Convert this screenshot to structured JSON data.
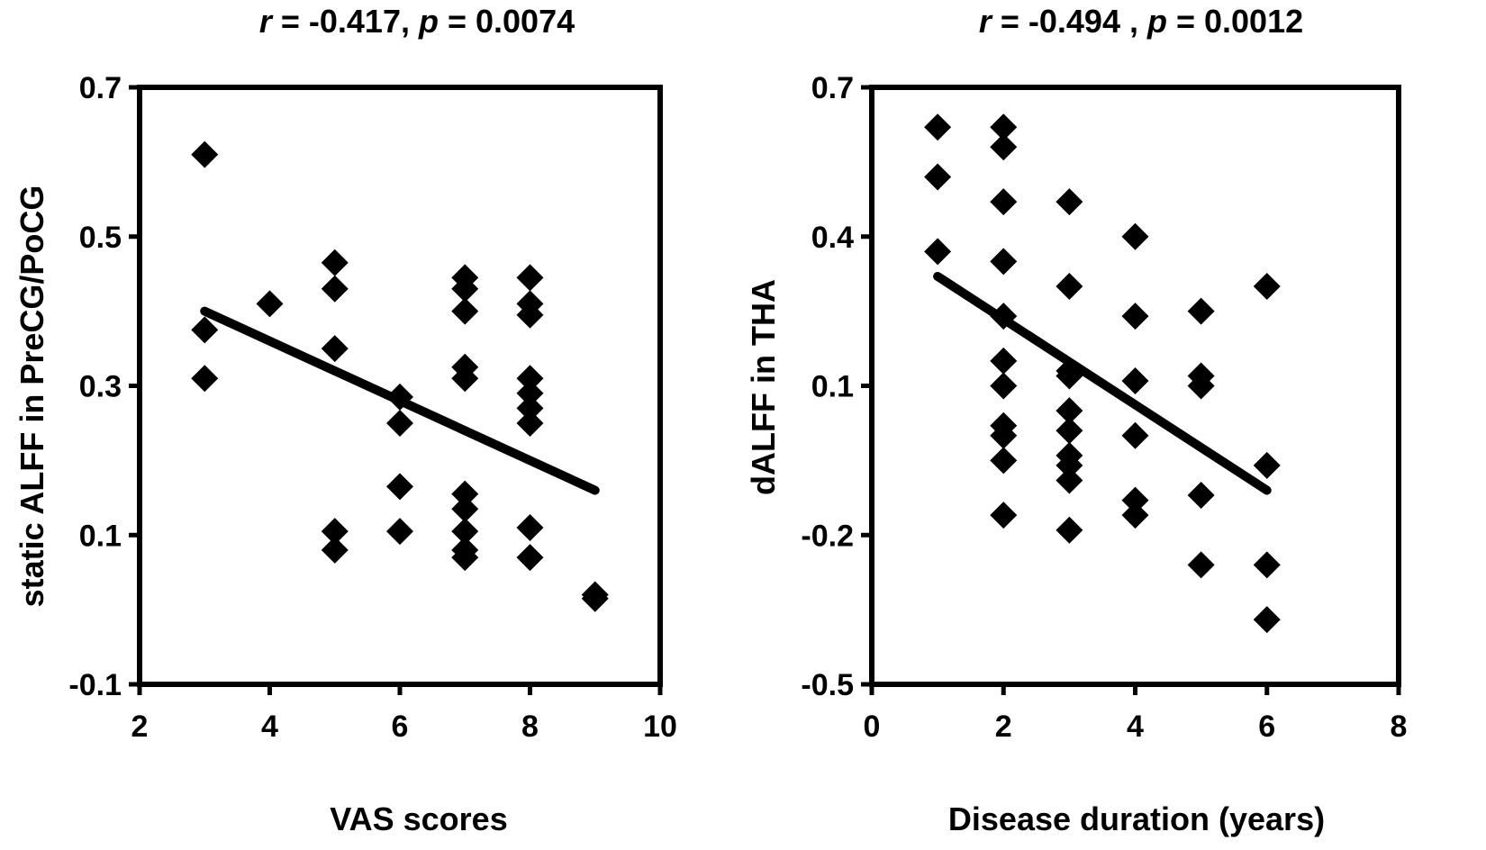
{
  "chart_data": [
    {
      "type": "scatter",
      "title": {
        "r_symbol": "r",
        "r_value": " = -0.417, ",
        "p_symbol": "p",
        "p_value": " = 0.0074"
      },
      "xlabel": "VAS scores",
      "ylabel": "static ALFF in PreCG/PoCG",
      "xlim": [
        2,
        10
      ],
      "ylim": [
        -0.1,
        0.7
      ],
      "xticks": [
        2,
        4,
        6,
        8,
        10
      ],
      "xtick_labels": [
        "2",
        "4",
        "6",
        "8",
        "10"
      ],
      "yticks": [
        -0.1,
        0.1,
        0.3,
        0.5,
        0.7
      ],
      "ytick_labels": [
        "-0.1",
        "0.1",
        "0.3",
        "0.5",
        "0.7"
      ],
      "marker": "diamond",
      "points": [
        {
          "x": 3,
          "y": 0.61
        },
        {
          "x": 3,
          "y": 0.375
        },
        {
          "x": 3,
          "y": 0.31
        },
        {
          "x": 4,
          "y": 0.41
        },
        {
          "x": 5,
          "y": 0.465
        },
        {
          "x": 5,
          "y": 0.43
        },
        {
          "x": 5,
          "y": 0.35
        },
        {
          "x": 5,
          "y": 0.105
        },
        {
          "x": 5,
          "y": 0.08
        },
        {
          "x": 6,
          "y": 0.285
        },
        {
          "x": 6,
          "y": 0.25
        },
        {
          "x": 6,
          "y": 0.165
        },
        {
          "x": 6,
          "y": 0.105
        },
        {
          "x": 7,
          "y": 0.445
        },
        {
          "x": 7,
          "y": 0.43
        },
        {
          "x": 7,
          "y": 0.4
        },
        {
          "x": 7,
          "y": 0.325
        },
        {
          "x": 7,
          "y": 0.31
        },
        {
          "x": 7,
          "y": 0.155
        },
        {
          "x": 7,
          "y": 0.135
        },
        {
          "x": 7,
          "y": 0.105
        },
        {
          "x": 7,
          "y": 0.08
        },
        {
          "x": 7,
          "y": 0.07
        },
        {
          "x": 8,
          "y": 0.445
        },
        {
          "x": 8,
          "y": 0.41
        },
        {
          "x": 8,
          "y": 0.395
        },
        {
          "x": 8,
          "y": 0.31
        },
        {
          "x": 8,
          "y": 0.29
        },
        {
          "x": 8,
          "y": 0.27
        },
        {
          "x": 8,
          "y": 0.25
        },
        {
          "x": 8,
          "y": 0.11
        },
        {
          "x": 8,
          "y": 0.07
        },
        {
          "x": 9,
          "y": 0.02
        },
        {
          "x": 9,
          "y": 0.015
        }
      ],
      "fit_line": {
        "x1": 3,
        "y1": 0.4,
        "x2": 9,
        "y2": 0.16
      }
    },
    {
      "type": "scatter",
      "title": {
        "r_symbol": "r",
        "r_value": " = -0.494 , ",
        "p_symbol": "p",
        "p_value": " = 0.0012"
      },
      "xlabel": "Disease duration (years)",
      "ylabel": "dALFF in THA",
      "xlim": [
        0,
        8
      ],
      "ylim": [
        -0.5,
        0.7
      ],
      "xticks": [
        0,
        2,
        4,
        6,
        8
      ],
      "xtick_labels": [
        "0",
        "2",
        "4",
        "6",
        "8"
      ],
      "yticks": [
        -0.5,
        -0.2,
        0.1,
        0.4,
        0.7
      ],
      "ytick_labels": [
        "-0.5",
        "-0.2",
        "0.1",
        "0.4",
        "0.7"
      ],
      "marker": "diamond",
      "points": [
        {
          "x": 1,
          "y": 0.62
        },
        {
          "x": 1,
          "y": 0.52
        },
        {
          "x": 1,
          "y": 0.37
        },
        {
          "x": 2,
          "y": 0.62
        },
        {
          "x": 2,
          "y": 0.58
        },
        {
          "x": 2,
          "y": 0.47
        },
        {
          "x": 2,
          "y": 0.35
        },
        {
          "x": 2,
          "y": 0.24
        },
        {
          "x": 2,
          "y": 0.15
        },
        {
          "x": 2,
          "y": 0.1
        },
        {
          "x": 2,
          "y": 0.02
        },
        {
          "x": 2,
          "y": 0.0
        },
        {
          "x": 2,
          "y": -0.05
        },
        {
          "x": 2,
          "y": -0.16
        },
        {
          "x": 3,
          "y": 0.47
        },
        {
          "x": 3,
          "y": 0.3
        },
        {
          "x": 3,
          "y": 0.13
        },
        {
          "x": 3,
          "y": 0.12
        },
        {
          "x": 3,
          "y": 0.05
        },
        {
          "x": 3,
          "y": 0.01
        },
        {
          "x": 3,
          "y": -0.04
        },
        {
          "x": 3,
          "y": -0.06
        },
        {
          "x": 3,
          "y": -0.09
        },
        {
          "x": 3,
          "y": -0.19
        },
        {
          "x": 4,
          "y": 0.4
        },
        {
          "x": 4,
          "y": 0.24
        },
        {
          "x": 4,
          "y": 0.11
        },
        {
          "x": 4,
          "y": 0.0
        },
        {
          "x": 4,
          "y": -0.13
        },
        {
          "x": 4,
          "y": -0.16
        },
        {
          "x": 5,
          "y": 0.25
        },
        {
          "x": 5,
          "y": 0.12
        },
        {
          "x": 5,
          "y": 0.1
        },
        {
          "x": 5,
          "y": -0.12
        },
        {
          "x": 5,
          "y": -0.26
        },
        {
          "x": 6,
          "y": 0.3
        },
        {
          "x": 6,
          "y": -0.06
        },
        {
          "x": 6,
          "y": -0.26
        },
        {
          "x": 6,
          "y": -0.37
        }
      ],
      "fit_line": {
        "x1": 1,
        "y1": 0.32,
        "x2": 6,
        "y2": -0.11
      }
    }
  ]
}
